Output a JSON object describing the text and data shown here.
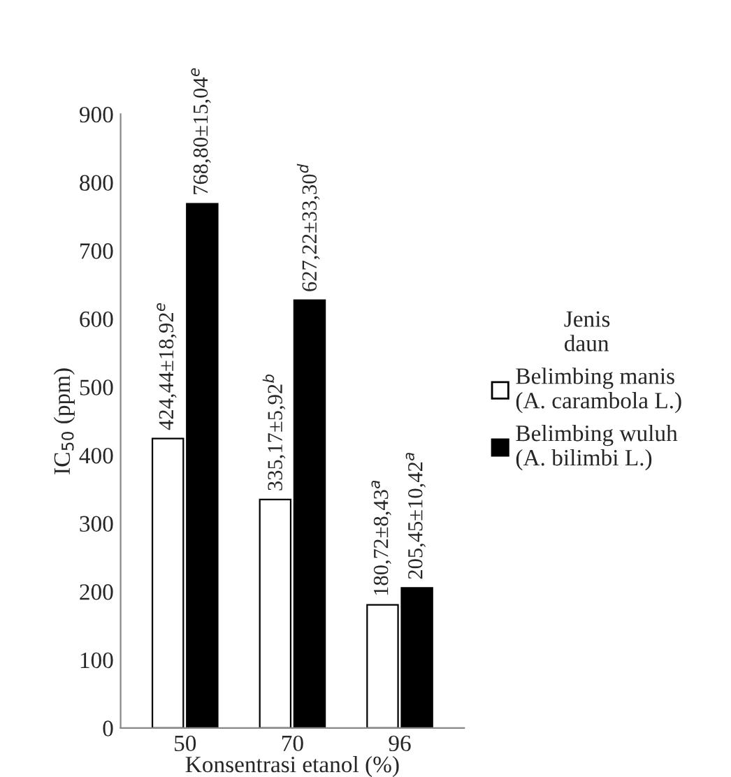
{
  "chart_data": {
    "type": "bar",
    "xlabel": "Konsentrasi etanol (%)",
    "ylabel": "IC$_{50}$ (ppm)",
    "legend_title": "Jenis\ndaun",
    "categories": [
      "50",
      "70",
      "96"
    ],
    "series": [
      {
        "name": "Belimbing manis\n(A. carambola L.)",
        "color": "#ffffff",
        "values": [
          424.44,
          335.17,
          180.72
        ],
        "value_labels": [
          "424,44±18,92$^{e}$",
          "335,17±5,92$^{b}$",
          "180,72±8,43$^{a}$"
        ]
      },
      {
        "name": "Belimbing wuluh\n(A. bilimbi L.)",
        "color": "#000000",
        "values": [
          768.8,
          627.22,
          205.45
        ],
        "value_labels": [
          "768,80±15,04$^{e}$",
          "627,22±33,30$^{d}$",
          "205,45±10,42$^{a}$"
        ]
      }
    ],
    "ylim": [
      0,
      900
    ],
    "yticks": [
      0,
      100,
      200,
      300,
      400,
      500,
      600,
      700,
      800,
      900
    ],
    "grid": false,
    "legend": "right"
  }
}
